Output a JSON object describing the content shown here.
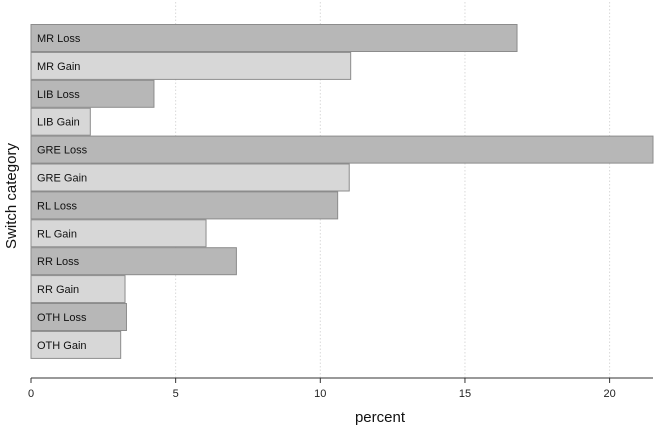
{
  "chart_data": {
    "type": "bar",
    "orientation": "horizontal",
    "title": "",
    "xlabel": "percent",
    "ylabel": "Switch category",
    "xlim": [
      0,
      21.5
    ],
    "xticks": [
      0,
      5,
      10,
      15,
      20
    ],
    "grid": "vertical dotted",
    "categories": [
      "MR Loss",
      "MR Gain",
      "LIB Loss",
      "LIB Gain",
      "GRE Loss",
      "GRE Gain",
      "RL Loss",
      "RL Gain",
      "RR Loss",
      "RR Gain",
      "OTH Loss",
      "OTH Gain"
    ],
    "values": [
      16.8,
      11.05,
      4.25,
      2.05,
      21.5,
      11.0,
      10.6,
      6.05,
      7.1,
      3.25,
      3.3,
      3.1
    ],
    "colors": {
      "loss": "#b7b7b7",
      "gain": "#d7d7d7",
      "bar_border": "#8c8c8c",
      "grid": "#d9d9d9",
      "axis": "#333333"
    }
  }
}
